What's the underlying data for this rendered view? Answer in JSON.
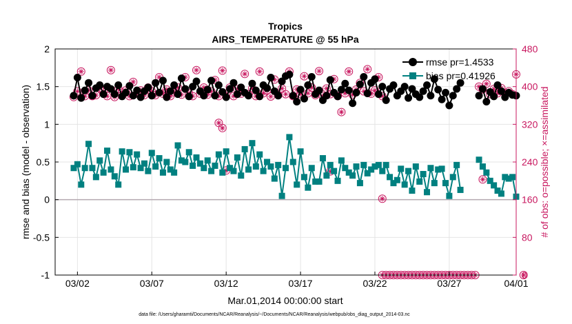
{
  "chart_data": {
    "type": "line",
    "title": "Tropics",
    "subtitle": "AIRS_TEMPERATURE @ 55 hPa",
    "xlabel": "Mar.01,2014 00:00:00 start",
    "ylabel": "rmse and bias (model - observation)",
    "ylabel_right": "# of obs: o=possible; ×=assimilated",
    "footnote": "data file: /Users/gharamti/Documents/NCAR/Reanalysis/~/Documents/NCAR/Reanalysis/webpub/obs_diag_output_2014-03.nc",
    "xlim": [
      0.5,
      31.5
    ],
    "ylim": [
      -1,
      2
    ],
    "ylim_right": [
      0,
      480
    ],
    "x_ticks": [
      {
        "value": 2,
        "label": "03/02"
      },
      {
        "value": 7,
        "label": "03/07"
      },
      {
        "value": 12,
        "label": "03/12"
      },
      {
        "value": 17,
        "label": "03/17"
      },
      {
        "value": 22,
        "label": "03/22"
      },
      {
        "value": 27,
        "label": "03/27"
      },
      {
        "value": 32,
        "label": "04/01"
      }
    ],
    "y_ticks": [
      {
        "value": -1,
        "label": "-1"
      },
      {
        "value": -0.5,
        "label": "-0.5"
      },
      {
        "value": 0,
        "label": "0"
      },
      {
        "value": 0.5,
        "label": "0.5"
      },
      {
        "value": 1,
        "label": "1"
      },
      {
        "value": 1.5,
        "label": "1.5"
      },
      {
        "value": 2,
        "label": "2"
      }
    ],
    "y_ticks_right": [
      {
        "value": 0,
        "label": "0"
      },
      {
        "value": 80,
        "label": "80"
      },
      {
        "value": 160,
        "label": "160"
      },
      {
        "value": 240,
        "label": "240"
      },
      {
        "value": 320,
        "label": "320"
      },
      {
        "value": 400,
        "label": "400"
      },
      {
        "value": 480,
        "label": "480"
      }
    ],
    "zero_line": 0,
    "colors": {
      "rmse": "#000000",
      "bias": "#008080",
      "obs": "#c8175f",
      "zero": "#b4a8b0",
      "grid": "#e4e4e4"
    },
    "legend": {
      "placement": "top-right",
      "entries": [
        {
          "series": "rmse",
          "label": "rmse pr=1.4533"
        },
        {
          "series": "bias",
          "label": "bias pr=0.41926"
        }
      ]
    },
    "series": [
      {
        "name": "rmse",
        "axis": "left",
        "marker": "circle",
        "segments": [
          {
            "x0": 1.75,
            "step": 0.25,
            "values": [
              1.38,
              1.62,
              1.35,
              1.45,
              1.55,
              1.38,
              1.48,
              1.52,
              1.4,
              1.5,
              1.47,
              1.4,
              1.52,
              1.37,
              1.42,
              1.51,
              1.38,
              1.45,
              1.36,
              1.44,
              1.49,
              1.38,
              1.55,
              1.42,
              1.58,
              1.36,
              1.44,
              1.52,
              1.4,
              1.61,
              1.47,
              1.37,
              1.5,
              1.57,
              1.44,
              1.38,
              1.46,
              1.58,
              1.38,
              1.52,
              1.43,
              1.36,
              1.47,
              1.55,
              1.4,
              1.49,
              1.42,
              1.38,
              1.54,
              1.45,
              1.37,
              1.52,
              1.48,
              1.62,
              1.44,
              1.38,
              1.57,
              1.64,
              1.66,
              1.38,
              1.3,
              1.46,
              1.34,
              1.52,
              1.63,
              1.4,
              1.45,
              1.32,
              1.38,
              1.59,
              1.42,
              1.37,
              1.46,
              1.54,
              1.45,
              1.28,
              1.42,
              1.53,
              1.63,
              1.41,
              1.55,
              1.6,
              1.4,
              1.5,
              1.32,
              1.47,
              1.52,
              1.38,
              1.44,
              1.5,
              1.35,
              1.47,
              1.4,
              1.36,
              1.44,
              1.52,
              1.38,
              1.6,
              1.46,
              1.33,
              1.42,
              1.25,
              1.38,
              1.47,
              1.55
            ]
          },
          {
            "x0": 29.0,
            "step": 0.25,
            "values": [
              1.38,
              1.47,
              1.3,
              1.43,
              1.37,
              1.52,
              1.44,
              1.36,
              1.42,
              1.39,
              1.38
            ]
          }
        ]
      },
      {
        "name": "bias",
        "axis": "left",
        "marker": "square",
        "segments": [
          {
            "x0": 1.75,
            "step": 0.25,
            "values": [
              0.42,
              0.47,
              0.2,
              0.42,
              0.74,
              0.42,
              0.3,
              0.52,
              0.36,
              0.65,
              0.4,
              0.31,
              0.2,
              0.64,
              0.4,
              0.63,
              0.43,
              0.6,
              0.42,
              0.48,
              0.38,
              0.62,
              0.44,
              0.55,
              0.36,
              0.5,
              0.4,
              0.36,
              0.72,
              0.52,
              0.5,
              0.63,
              0.45,
              0.56,
              0.48,
              0.42,
              0.52,
              0.38,
              0.45,
              0.6,
              0.36,
              0.64,
              0.42,
              0.38,
              0.56,
              0.32,
              0.67,
              0.4,
              0.75,
              0.44,
              0.6,
              0.38,
              0.5,
              0.44,
              0.28,
              0.46,
              0.05,
              0.42,
              0.83,
              0.5,
              0.2,
              0.64,
              0.3,
              0.16,
              0.42,
              0.24,
              0.24,
              0.55,
              0.32,
              0.46,
              0.38,
              0.25,
              0.52,
              0.42,
              0.36,
              0.32,
              0.44,
              0.22,
              0.46,
              0.35,
              0.4,
              0.44,
              0.46,
              0.38,
              0.46,
              0.3,
              0.22,
              0.26,
              0.41,
              0.2,
              0.38,
              0.12,
              0.44,
              0.24,
              0.34,
              0.1,
              0.42,
              0.22,
              0.4,
              0.41,
              0.22,
              0.05,
              0.3,
              0.46,
              0.13
            ]
          },
          {
            "x0": 29.0,
            "step": 0.25,
            "values": [
              0.53,
              0.44,
              0.36,
              0.25,
              0.19,
              0.12,
              0.08,
              0.3,
              0.28,
              0.3,
              0.04
            ]
          }
        ]
      }
    ],
    "obs_series": {
      "axis": "right",
      "markers": "circle = possible, asterisk = assimilated",
      "points": [
        [
          1.75,
          378
        ],
        [
          2.0,
          390
        ],
        [
          2.25,
          432
        ],
        [
          2.5,
          380
        ],
        [
          2.75,
          392
        ],
        [
          3.0,
          380
        ],
        [
          3.25,
          382
        ],
        [
          3.5,
          397
        ],
        [
          3.75,
          390
        ],
        [
          4.0,
          380
        ],
        [
          4.25,
          435
        ],
        [
          4.5,
          378
        ],
        [
          4.75,
          395
        ],
        [
          5.0,
          387
        ],
        [
          5.25,
          392
        ],
        [
          5.5,
          380
        ],
        [
          5.75,
          410
        ],
        [
          6.0,
          385
        ],
        [
          6.25,
          392
        ],
        [
          6.5,
          382
        ],
        [
          6.75,
          398
        ],
        [
          7.0,
          390
        ],
        [
          7.25,
          382
        ],
        [
          7.5,
          420
        ],
        [
          7.75,
          385
        ],
        [
          8.0,
          394
        ],
        [
          8.25,
          380
        ],
        [
          8.5,
          388
        ],
        [
          8.75,
          398
        ],
        [
          9.0,
          383
        ],
        [
          9.25,
          420
        ],
        [
          9.5,
          386
        ],
        [
          9.75,
          380
        ],
        [
          10.0,
          435
        ],
        [
          10.25,
          385
        ],
        [
          10.5,
          398
        ],
        [
          10.75,
          383
        ],
        [
          11.0,
          390
        ],
        [
          11.25,
          414
        ],
        [
          11.5,
          380
        ],
        [
          11.75,
          434
        ],
        [
          12.0,
          385
        ],
        [
          12.25,
          398
        ],
        [
          12.5,
          380
        ],
        [
          12.75,
          395
        ],
        [
          13.0,
          385
        ],
        [
          13.25,
          427
        ],
        [
          13.5,
          384
        ],
        [
          13.75,
          396
        ],
        [
          14.0,
          380
        ],
        [
          14.25,
          432
        ],
        [
          14.5,
          386
        ],
        [
          14.75,
          392
        ],
        [
          15.0,
          379
        ],
        [
          15.25,
          415
        ],
        [
          15.5,
          382
        ],
        [
          15.75,
          396
        ],
        [
          16.0,
          384
        ],
        [
          16.25,
          432
        ],
        [
          16.5,
          380
        ],
        [
          16.75,
          394
        ],
        [
          17.0,
          384
        ],
        [
          17.25,
          422
        ],
        [
          17.5,
          386
        ],
        [
          17.75,
          398
        ],
        [
          18.0,
          382
        ],
        [
          18.25,
          433
        ],
        [
          18.5,
          380
        ],
        [
          18.75,
          396
        ],
        [
          19.0,
          384
        ],
        [
          19.25,
          416
        ],
        [
          19.5,
          380
        ],
        [
          19.75,
          346
        ],
        [
          20.0,
          386
        ],
        [
          20.25,
          432
        ],
        [
          20.5,
          383
        ],
        [
          20.75,
          394
        ],
        [
          21.0,
          408
        ],
        [
          21.25,
          390
        ],
        [
          21.5,
          437
        ],
        [
          21.75,
          385
        ],
        [
          22.0,
          392
        ],
        [
          22.25,
          420
        ],
        [
          22.5,
          380
        ],
        [
          29.0,
          400
        ],
        [
          29.25,
          394
        ],
        [
          29.5,
          406
        ],
        [
          29.75,
          384
        ],
        [
          30.0,
          395
        ],
        [
          30.25,
          386
        ],
        [
          30.5,
          397
        ],
        [
          30.75,
          386
        ],
        [
          31.0,
          390
        ],
        [
          31.25,
          384
        ],
        [
          31.5,
          426
        ],
        [
          11.5,
          323
        ],
        [
          11.75,
          312
        ],
        [
          12.0,
          222
        ],
        [
          19.0,
          220
        ],
        [
          22.5,
          162
        ],
        [
          29.25,
          203
        ]
      ],
      "zero_line_points": {
        "x_start": 22.5,
        "x_end": 28.75,
        "step": 0.25,
        "value": 0
      },
      "last_point": [
        32.0,
        0
      ]
    }
  }
}
